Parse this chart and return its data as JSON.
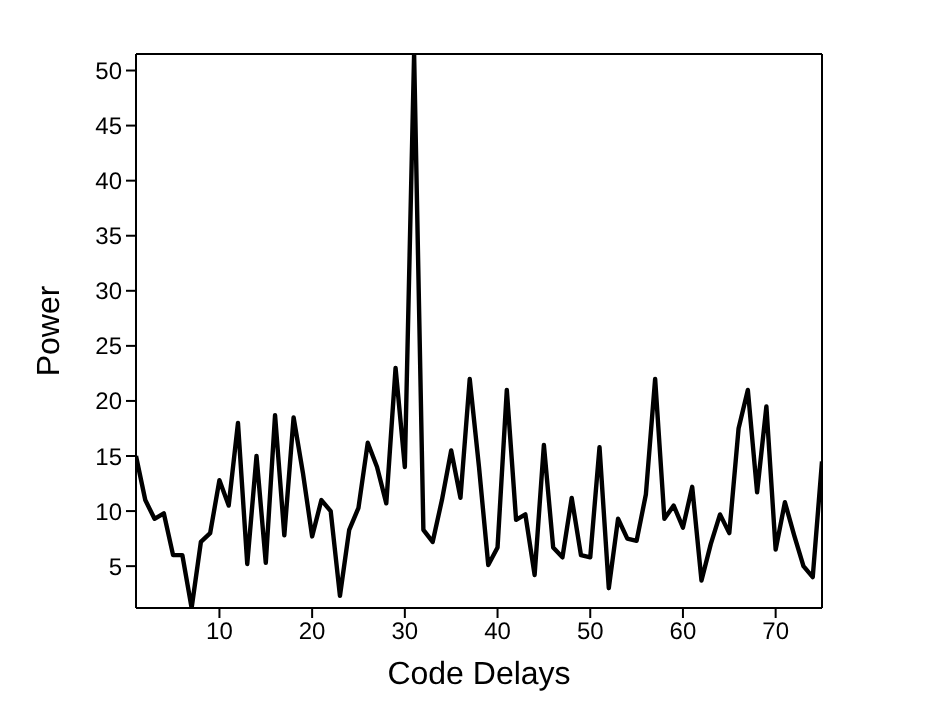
{
  "chart_data": {
    "type": "line",
    "xlabel": "Code Delays",
    "ylabel": "Power",
    "x": [
      1,
      2,
      3,
      4,
      5,
      6,
      7,
      8,
      9,
      10,
      11,
      12,
      13,
      14,
      15,
      16,
      17,
      18,
      19,
      20,
      21,
      22,
      23,
      24,
      25,
      26,
      27,
      28,
      29,
      30,
      31,
      32,
      33,
      34,
      35,
      36,
      37,
      38,
      39,
      40,
      41,
      42,
      43,
      44,
      45,
      46,
      47,
      48,
      49,
      50,
      51,
      52,
      53,
      54,
      55,
      56,
      57,
      58,
      59,
      60,
      61,
      62,
      63,
      64,
      65,
      66,
      67,
      68,
      69,
      70,
      71,
      72,
      73,
      74,
      75
    ],
    "series": [
      {
        "color": "#000000",
        "values": [
          15,
          11,
          9.3,
          9.8,
          6,
          6,
          1.2,
          7.2,
          8,
          12.8,
          10.5,
          18,
          5.2,
          15,
          5.3,
          18.7,
          7.8,
          18.5,
          13.5,
          7.7,
          11,
          10,
          2.3,
          8.3,
          10.3,
          16.2,
          14,
          10.7,
          23,
          14,
          51.5,
          8.3,
          7.2,
          11,
          15.5,
          11.2,
          22,
          14,
          5.1,
          6.7,
          21,
          9.2,
          9.7,
          4.2,
          16,
          6.7,
          5.8,
          11.2,
          6,
          5.8,
          15.8,
          3,
          9.3,
          7.5,
          7.3,
          11.5,
          22,
          9.3,
          10.5,
          8.5,
          12.2,
          3.7,
          7,
          9.7,
          8,
          17.5,
          21,
          11.7,
          19.5,
          6.5,
          10.8,
          7.8,
          5,
          4,
          14.5
        ]
      }
    ],
    "xlim": [
      1,
      75
    ],
    "ylim": [
      1.2,
      51.5
    ],
    "xticks": [
      10,
      20,
      30,
      40,
      50,
      60,
      70
    ],
    "yticks": [
      5,
      10,
      15,
      20,
      25,
      30,
      35,
      40,
      45,
      50
    ],
    "grid": false,
    "legend": false,
    "marker": "none",
    "line_style": "solid"
  }
}
